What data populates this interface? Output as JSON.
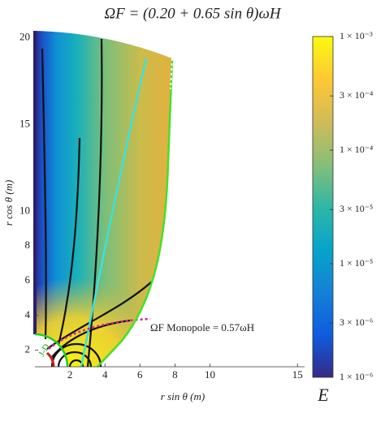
{
  "chart_data": {
    "type": "field",
    "title": "ΩF = (0.20 + 0.65 sin θ)ωH",
    "x_label": "r sin θ (m)",
    "y_label": "r cos θ (m)",
    "xlim": [
      0,
      15.5
    ],
    "xticks": [
      2,
      4,
      6,
      8,
      10,
      15
    ],
    "ylim": [
      1,
      20.3
    ],
    "yticks": [
      2,
      4,
      6,
      8,
      10,
      15,
      20
    ],
    "annotations": [
      "ΩF Monopole = 0.57ωH",
      "J-D"
    ],
    "colorbar": {
      "label": "E",
      "scale": "log",
      "lim": [
        1e-06,
        0.001
      ],
      "ticks": [
        {
          "value": 0.001,
          "label": "1 × 10⁻³"
        },
        {
          "value": 0.0003,
          "label": "3 × 10⁻⁴"
        },
        {
          "value": 0.0001,
          "label": "1 × 10⁻⁴"
        },
        {
          "value": 3e-05,
          "label": "3 × 10⁻⁵"
        },
        {
          "value": 1e-05,
          "label": "1 × 10⁻⁵"
        },
        {
          "value": 3e-06,
          "label": "3 × 10⁻⁶"
        },
        {
          "value": 1e-06,
          "label": "1 × 10⁻⁶"
        }
      ],
      "colormap": [
        "#352a87",
        "#0f5cdd",
        "#1481d6",
        "#06a4ca",
        "#2eb7a4",
        "#87bf77",
        "#d1bb59",
        "#fec832",
        "#f9fb0e"
      ]
    }
  }
}
